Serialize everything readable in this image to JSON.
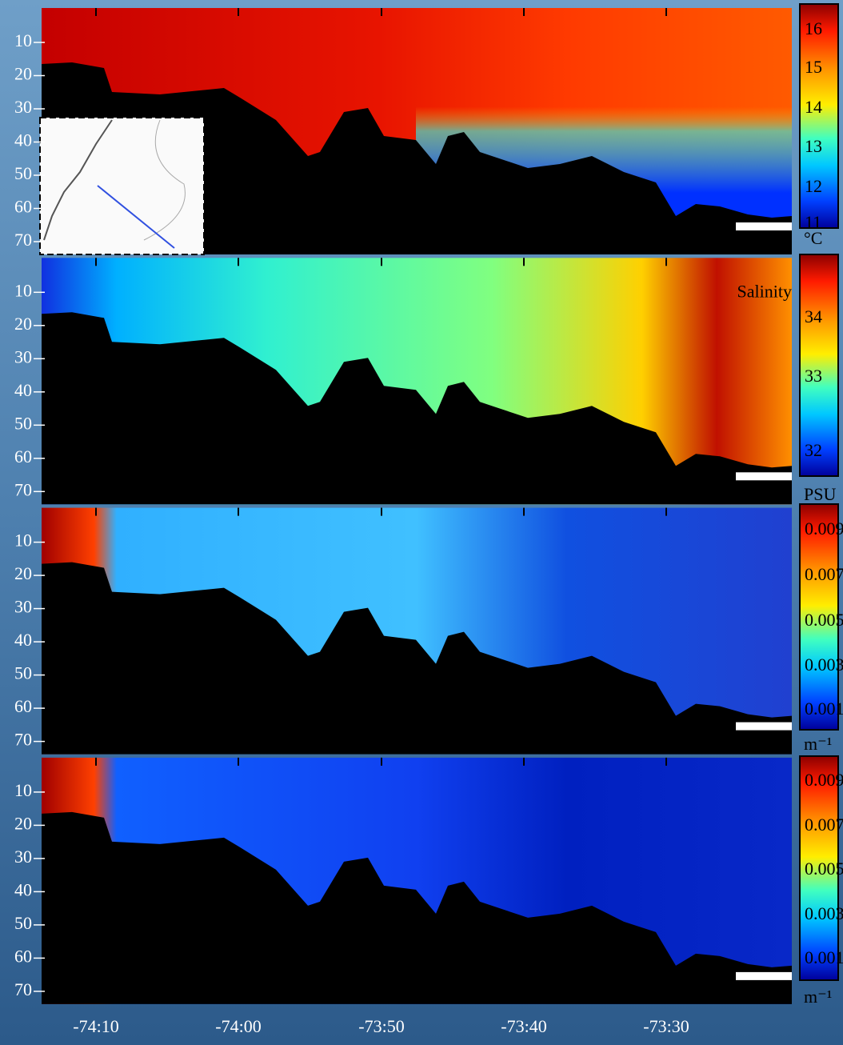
{
  "panels": [
    {
      "y_tick_labels": [
        "10",
        "20",
        "30",
        "40",
        "50",
        "60",
        "70"
      ],
      "colorbar": {
        "labels": [
          "16",
          "15",
          "14",
          "13",
          "12",
          "11"
        ],
        "unit": "°C"
      }
    },
    {
      "y_tick_labels": [
        "10",
        "20",
        "30",
        "40",
        "50",
        "60",
        "70"
      ],
      "annotation": "Salinity",
      "colorbar": {
        "labels": [
          "34",
          "33",
          "32"
        ],
        "unit": "PSU"
      }
    },
    {
      "y_tick_labels": [
        "10",
        "20",
        "30",
        "40",
        "50",
        "60",
        "70"
      ],
      "colorbar": {
        "labels": [
          "0.009",
          "0.007",
          "0.005",
          "0.003",
          "0.001"
        ],
        "unit": "m⁻¹"
      }
    },
    {
      "y_tick_labels": [
        "10",
        "20",
        "30",
        "40",
        "50",
        "60",
        "70"
      ],
      "colorbar": {
        "labels": [
          "0.009",
          "0.007",
          "0.005",
          "0.003",
          "0.001"
        ],
        "unit": "m⁻¹"
      }
    }
  ],
  "x_tick_labels": [
    "-74:10",
    "-74:00",
    "-73:50",
    "-73:40",
    "-73:30"
  ]
}
